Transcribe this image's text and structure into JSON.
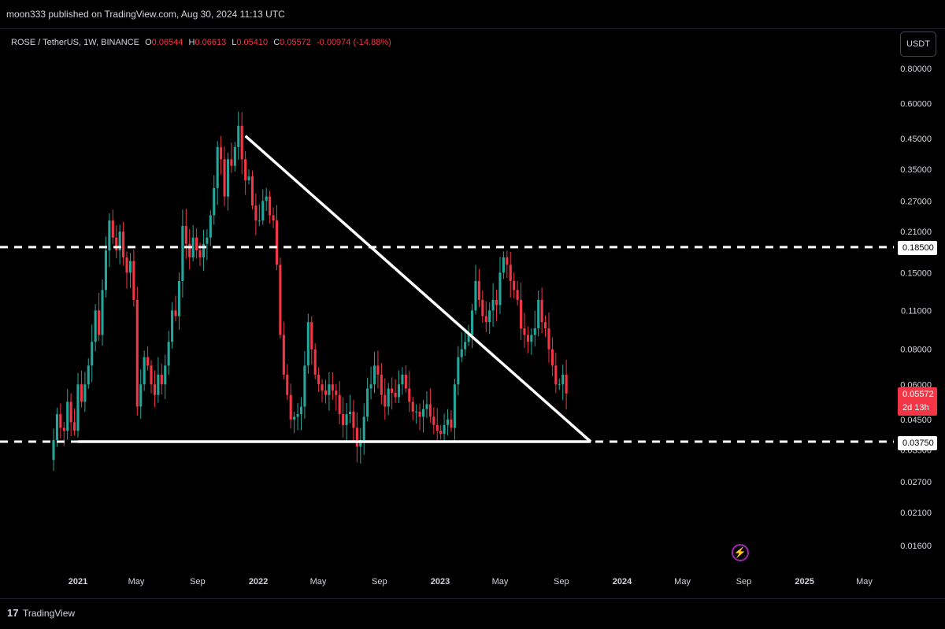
{
  "header": {
    "published_by": "moon333 published on TradingView.com, Aug 30, 2024 11:13 UTC"
  },
  "legend": {
    "symbol": "ROSE / TetherUS, 1W, BINANCE",
    "open_label": "O",
    "open": "0.06544",
    "high_label": "H",
    "high": "0.06613",
    "low_label": "L",
    "low": "0.05410",
    "close_label": "C",
    "close": "0.05572",
    "change": "-0.00974 (-14.88%)"
  },
  "currency_button": "USDT",
  "price_tags": {
    "resistance": "0.18500",
    "support": "0.03750",
    "last_price": "0.05572",
    "countdown": "2d 13h"
  },
  "footer": {
    "brand": "TradingView",
    "logo_icon": "tradingview-logo-icon"
  },
  "colors": {
    "up": "#26a69a",
    "down": "#f23645",
    "background": "#000000",
    "axis_text": "#d1d4dc",
    "lines": "#ffffff",
    "bolt": "#9c27b0"
  },
  "chart_data": {
    "type": "candlestick",
    "scale": "log",
    "y_ticks": [
      "0.80000",
      "0.60000",
      "0.45000",
      "0.35000",
      "0.27000",
      "0.21000",
      "0.15000",
      "0.11000",
      "0.08000",
      "0.06000",
      "0.04500",
      "0.03500",
      "0.02700",
      "0.02100",
      "0.01600"
    ],
    "x_ticks": [
      "2021",
      "May",
      "Sep",
      "2022",
      "May",
      "Sep",
      "2023",
      "May",
      "Sep",
      "2024",
      "May",
      "Sep",
      "2025",
      "May"
    ],
    "horizontal_levels": [
      {
        "price": 0.185,
        "style": "dashed"
      },
      {
        "price": 0.0375,
        "style": "dashed"
      }
    ],
    "trendlines": [
      {
        "from": [
          "2021-12-06",
          0.46
        ],
        "to": [
          "2023-10-30",
          0.0375
        ]
      },
      {
        "from": [
          "2021-01-04",
          0.0375
        ],
        "to": [
          "2023-10-30",
          0.0375
        ]
      }
    ],
    "candles_weekly_close": [
      0.038,
      0.047,
      0.042,
      0.041,
      0.052,
      0.044,
      0.041,
      0.06,
      0.052,
      0.06,
      0.07,
      0.085,
      0.11,
      0.09,
      0.13,
      0.18,
      0.23,
      0.2,
      0.18,
      0.21,
      0.17,
      0.15,
      0.165,
      0.12,
      0.05,
      0.06,
      0.075,
      0.07,
      0.06,
      0.055,
      0.065,
      0.06,
      0.07,
      0.085,
      0.11,
      0.105,
      0.14,
      0.22,
      0.19,
      0.17,
      0.2,
      0.18,
      0.17,
      0.19,
      0.2,
      0.24,
      0.3,
      0.42,
      0.38,
      0.28,
      0.38,
      0.36,
      0.42,
      0.5,
      0.38,
      0.32,
      0.33,
      0.26,
      0.23,
      0.23,
      0.27,
      0.28,
      0.24,
      0.23,
      0.16,
      0.09,
      0.065,
      0.055,
      0.045,
      0.046,
      0.047,
      0.05,
      0.07,
      0.1,
      0.08,
      0.065,
      0.06,
      0.057,
      0.055,
      0.06,
      0.057,
      0.055,
      0.047,
      0.043,
      0.047,
      0.048,
      0.042,
      0.036,
      0.038,
      0.046,
      0.058,
      0.06,
      0.07,
      0.065,
      0.055,
      0.05,
      0.058,
      0.056,
      0.054,
      0.06,
      0.065,
      0.058,
      0.052,
      0.048,
      0.048,
      0.046,
      0.049,
      0.051,
      0.046,
      0.043,
      0.041,
      0.04,
      0.043,
      0.045,
      0.042,
      0.06,
      0.075,
      0.08,
      0.085,
      0.09,
      0.11,
      0.14,
      0.12,
      0.105,
      0.1,
      0.11,
      0.12,
      0.115,
      0.15,
      0.17,
      0.16,
      0.14,
      0.13,
      0.12,
      0.095,
      0.09,
      0.085,
      0.09,
      0.095,
      0.12,
      0.1,
      0.095,
      0.08,
      0.07,
      0.06,
      0.06,
      0.065,
      0.0557
    ]
  }
}
